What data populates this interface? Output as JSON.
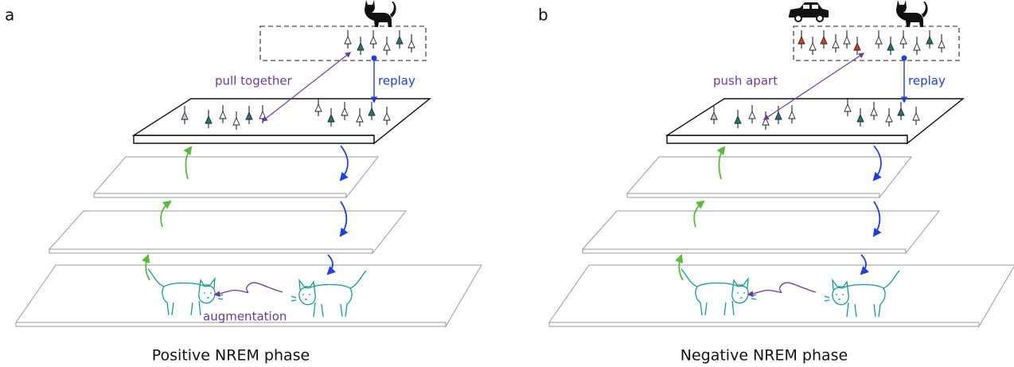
{
  "panels": [
    {
      "letter": "a",
      "arrow_label": "pull together",
      "replay": "replay",
      "augmentation": "augmentation",
      "caption": "Positive NREM phase"
    },
    {
      "letter": "b",
      "arrow_label": "push apart",
      "replay": "replay",
      "caption": "Negative NREM phase"
    }
  ]
}
